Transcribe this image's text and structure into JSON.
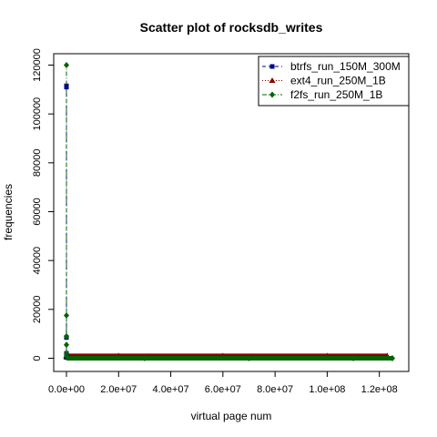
{
  "chart_data": {
    "type": "scatter",
    "title": "Scatter plot of rocksdb_writes",
    "xlabel": "virtual page num",
    "ylabel": "frequencies",
    "xlim": [
      0,
      125000000
    ],
    "ylim": [
      0,
      120000
    ],
    "x_ticks": [
      0,
      20000000,
      40000000,
      60000000,
      80000000,
      100000000,
      120000000
    ],
    "x_tick_labels": [
      "0.0e+00",
      "2.0e+07",
      "4.0e+07",
      "6.0e+07",
      "8.0e+07",
      "1.0e+08",
      "1.2e+08"
    ],
    "y_ticks": [
      0,
      20000,
      40000,
      60000,
      80000,
      100000,
      120000
    ],
    "y_tick_labels": [
      "0",
      "20000",
      "40000",
      "60000",
      "80000",
      "100000",
      "120000"
    ],
    "legend_position": "top-right",
    "series": [
      {
        "name": "btrfs_run_150M_300M",
        "color": "#00008b",
        "marker": "square",
        "line": "dashed",
        "points": [
          [
            0,
            111500
          ],
          [
            0,
            111000
          ],
          [
            0,
            8500
          ],
          [
            0,
            2000
          ],
          [
            0,
            800
          ],
          [
            0,
            300
          ],
          [
            10000000,
            0
          ],
          [
            40000000,
            0
          ],
          [
            80000000,
            0
          ],
          [
            120000000,
            0
          ]
        ]
      },
      {
        "name": "ext4_run_250M_1B",
        "color": "#8b0000",
        "marker": "triangle",
        "line": "dotted",
        "points": [
          [
            0,
            1000
          ],
          [
            0,
            600
          ],
          [
            20000000,
            1000
          ],
          [
            60000000,
            1000
          ],
          [
            100000000,
            1000
          ],
          [
            123000000,
            1000
          ]
        ]
      },
      {
        "name": "f2fs_run_250M_1B",
        "color": "#006400",
        "marker": "diamond",
        "line": "dashdot",
        "points": [
          [
            0,
            120000
          ],
          [
            0,
            17500
          ],
          [
            0,
            9000
          ],
          [
            0,
            5500
          ],
          [
            0,
            2000
          ],
          [
            0,
            800
          ],
          [
            30000000,
            0
          ],
          [
            70000000,
            0
          ],
          [
            110000000,
            0
          ],
          [
            125000000,
            0
          ]
        ]
      }
    ]
  }
}
